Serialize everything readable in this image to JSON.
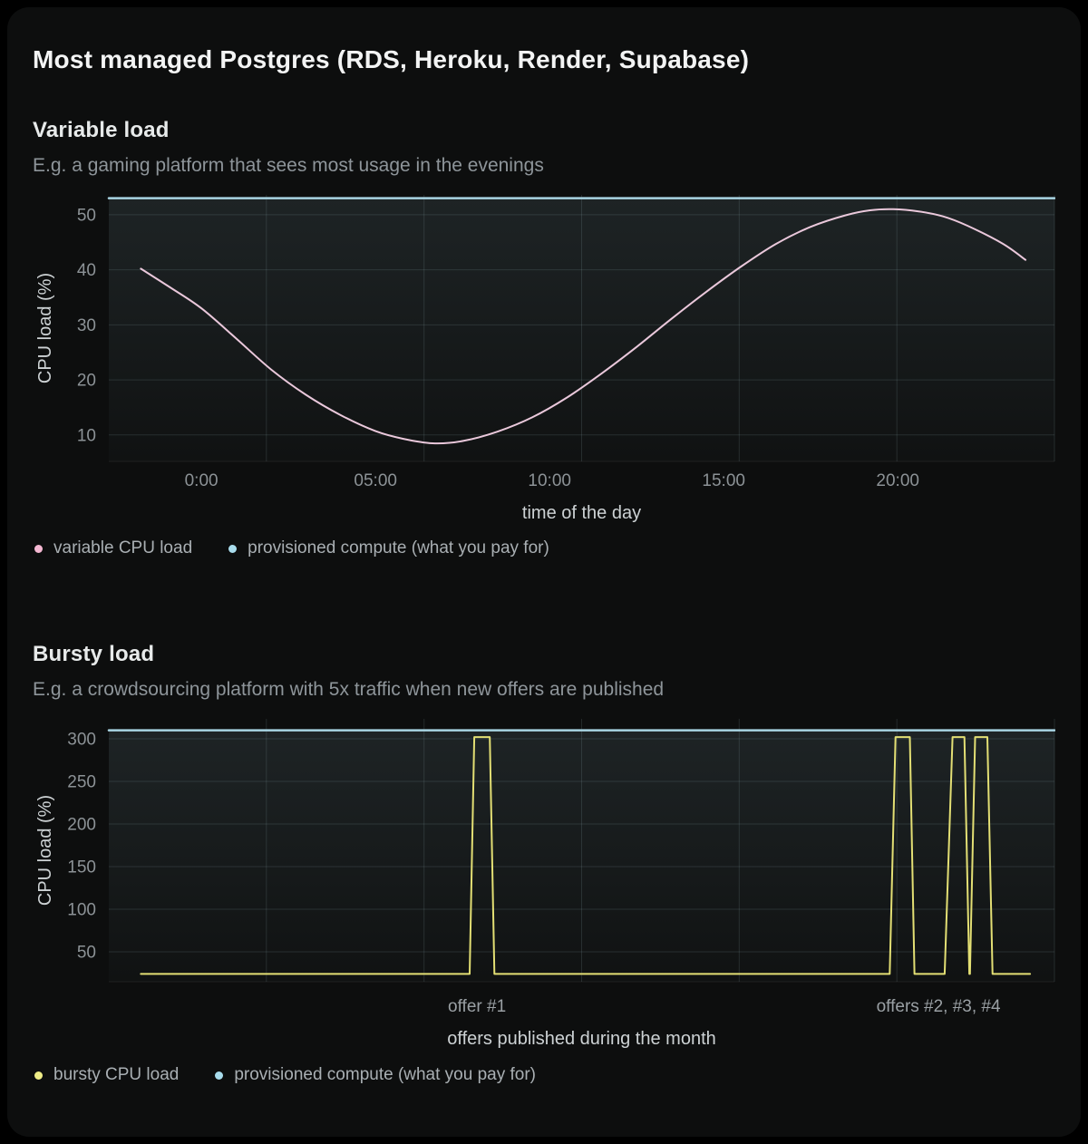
{
  "page": {
    "title": "Most managed Postgres (RDS, Heroku, Render, Supabase)"
  },
  "style": {
    "grid_color": "rgba(156,184,192,0.16)",
    "area_fill_top": "rgba(166,211,224,0.11)",
    "area_fill_bottom": "rgba(166,211,224,0.02)",
    "tick_label_color": "#8c9296",
    "axis_title_color": "#cdd2d4",
    "annotation_color": "#9aa0a4"
  },
  "charts": [
    {
      "heading": "Variable load",
      "subtitle": "E.g. a gaming platform that sees most usage in the evenings",
      "chart_data": {
        "type": "line",
        "xlabel": "time of the day",
        "ylabel": "CPU load (%)",
        "x_domain": [
          -2.66,
          24.5
        ],
        "y_domain": [
          5.2,
          53.6
        ],
        "x_ticks": [
          {
            "v": 0,
            "label": "0:00"
          },
          {
            "v": 5,
            "label": "05:00"
          },
          {
            "v": 10,
            "label": "10:00"
          },
          {
            "v": 15,
            "label": "15:00"
          },
          {
            "v": 20,
            "label": "20:00"
          }
        ],
        "y_ticks": [
          10,
          20,
          30,
          40,
          50
        ],
        "annotations": [],
        "series": [
          {
            "name": "variable CPU load",
            "color": "#eac8db",
            "dot_color": "#f4b8d2",
            "width": 2,
            "smooth": true,
            "area": false,
            "points": [
              [
                -1.74,
                40.2
              ],
              [
                -0.9,
                36.8
              ],
              [
                0,
                33.0
              ],
              [
                1,
                27.5
              ],
              [
                2,
                21.9
              ],
              [
                3,
                17.3
              ],
              [
                4,
                13.6
              ],
              [
                5,
                10.7
              ],
              [
                5.8,
                9.3
              ],
              [
                6.64,
                8.5
              ],
              [
                7.5,
                8.9
              ],
              [
                8.5,
                10.6
              ],
              [
                9.5,
                13.2
              ],
              [
                10.5,
                16.8
              ],
              [
                11.5,
                21.2
              ],
              [
                12.5,
                26.0
              ],
              [
                13.5,
                31.1
              ],
              [
                14.5,
                36.0
              ],
              [
                15.5,
                40.6
              ],
              [
                16.5,
                44.7
              ],
              [
                17.5,
                47.8
              ],
              [
                18.5,
                49.9
              ],
              [
                19.2,
                50.8
              ],
              [
                19.87,
                51.0
              ],
              [
                20.6,
                50.6
              ],
              [
                21.3,
                49.7
              ],
              [
                22,
                48.0
              ],
              [
                23,
                44.8
              ],
              [
                23.67,
                41.8
              ]
            ]
          },
          {
            "name": "provisioned compute (what you pay for)",
            "color": "#a9d5e3",
            "dot_color": "#a8dcec",
            "width": 2.5,
            "smooth": false,
            "area": true,
            "points": [
              [
                -2.66,
                53
              ],
              [
                24.5,
                53
              ]
            ]
          }
        ]
      }
    },
    {
      "heading": "Bursty load",
      "subtitle": "E.g. a crowdsourcing platform with 5x traffic when new offers are published",
      "chart_data": {
        "type": "line",
        "xlabel": "offers published during the month",
        "ylabel": "CPU load (%)",
        "x_domain": [
          0,
          31
        ],
        "y_domain": [
          14.9,
          323.4
        ],
        "x_ticks": [],
        "y_ticks": [
          50,
          100,
          150,
          200,
          250,
          300
        ],
        "annotations": [
          {
            "x": 12.07,
            "label": "offer #1"
          },
          {
            "x": 27.2,
            "label": "offers #2, #3, #4"
          }
        ],
        "series": [
          {
            "name": "bursty CPU load",
            "color": "#e3df74",
            "dot_color": "#eeec86",
            "width": 2,
            "smooth": false,
            "area": false,
            "points": [
              [
                1.05,
                24
              ],
              [
                11.83,
                24
              ],
              [
                11.98,
                302
              ],
              [
                12.49,
                302
              ],
              [
                12.64,
                24
              ],
              [
                25.6,
                24
              ],
              [
                25.79,
                302
              ],
              [
                26.26,
                302
              ],
              [
                26.41,
                24
              ],
              [
                27.4,
                24
              ],
              [
                27.66,
                302
              ],
              [
                28.05,
                302
              ],
              [
                28.21,
                24
              ],
              [
                28.23,
                24
              ],
              [
                28.4,
                302
              ],
              [
                28.8,
                302
              ],
              [
                28.97,
                24
              ],
              [
                30.2,
                24
              ]
            ]
          },
          {
            "name": "provisioned compute (what you pay for)",
            "color": "#a9d5e3",
            "dot_color": "#a8dcec",
            "width": 2.5,
            "smooth": false,
            "area": true,
            "points": [
              [
                0,
                310
              ],
              [
                31,
                310
              ]
            ]
          }
        ]
      }
    }
  ]
}
